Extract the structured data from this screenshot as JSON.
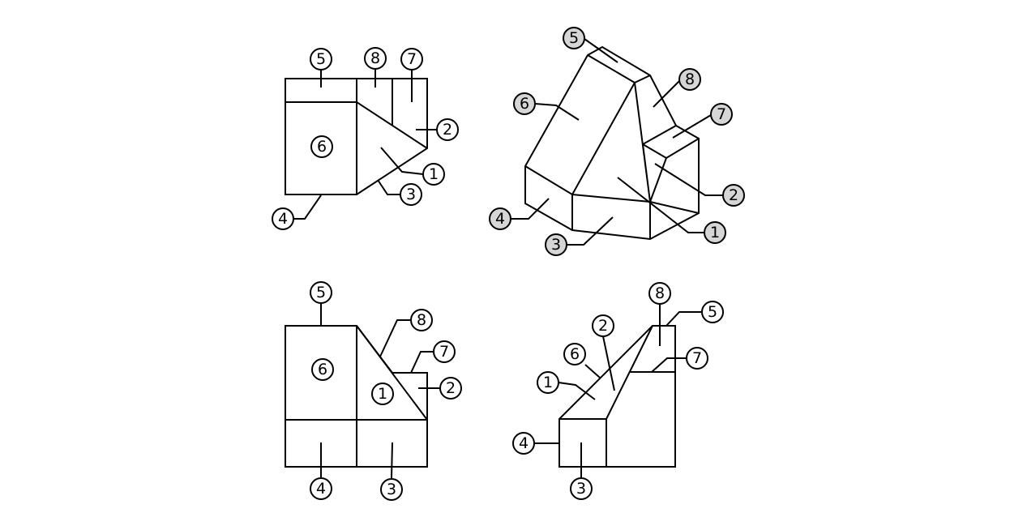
{
  "views": {
    "top": {
      "labels": [
        "5",
        "8",
        "7",
        "2",
        "1",
        "3",
        "4"
      ],
      "face_label": "6"
    },
    "iso": {
      "labels": [
        "5",
        "8",
        "6",
        "7",
        "2",
        "4",
        "1",
        "3"
      ]
    },
    "front": {
      "labels": [
        "5",
        "8",
        "7",
        "2",
        "4",
        "3"
      ],
      "face_labels": [
        "6",
        "1"
      ]
    },
    "side": {
      "labels": [
        "8",
        "5",
        "2",
        "6",
        "7",
        "1",
        "4",
        "3"
      ]
    }
  },
  "colors": {
    "line": "#000000",
    "iso_bubble_fill": "#d6d6d6",
    "bubble_fill": "#ffffff"
  }
}
